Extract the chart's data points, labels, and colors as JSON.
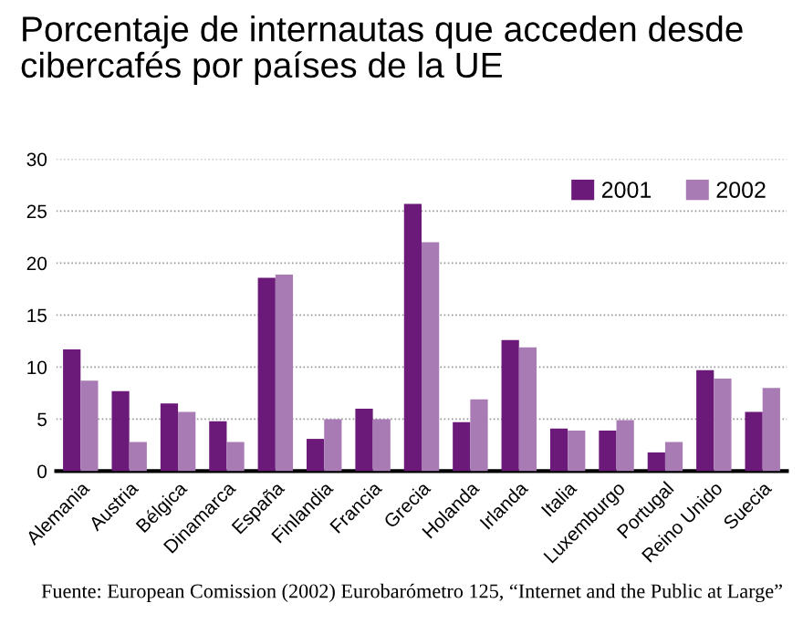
{
  "chart_data": {
    "type": "bar",
    "title": "Porcentaje de internautas que acceden desde\ncibercafés por países de la UE",
    "categories": [
      "Alemania",
      "Austria",
      "Bélgica",
      "Dinamarca",
      "España",
      "Finlandia",
      "Francia",
      "Grecia",
      "Holanda",
      "Irlanda",
      "Italia",
      "Luxemburgo",
      "Portugal",
      "Reino Unido",
      "Suecia"
    ],
    "series": [
      {
        "name": "2001",
        "color": "#6b1a7a",
        "values": [
          11.7,
          7.7,
          6.5,
          4.8,
          18.6,
          3.1,
          6.0,
          25.7,
          4.7,
          12.6,
          4.1,
          3.9,
          1.8,
          9.7,
          5.7
        ]
      },
      {
        "name": "2002",
        "color": "#a97bb5",
        "values": [
          8.7,
          2.8,
          5.7,
          2.8,
          18.9,
          5.0,
          5.0,
          22.0,
          6.9,
          11.9,
          3.9,
          4.9,
          2.8,
          8.9,
          8.0
        ]
      }
    ],
    "ylim": [
      0,
      30
    ],
    "yticks": [
      0,
      5,
      10,
      15,
      20,
      25,
      30
    ],
    "grid": "y",
    "legend": "top right",
    "annotations": [
      "Fuente: European Comission (2002) Eurobarómetro 125, “Internet and the Public at Large”"
    ]
  }
}
